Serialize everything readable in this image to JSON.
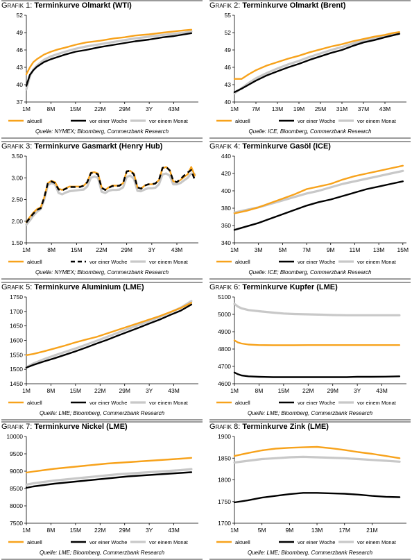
{
  "colors": {
    "aktuell": "#f7a21b",
    "vor_woche": "#000000",
    "vor_monat": "#c8c8c8"
  },
  "chart_data": [
    {
      "type": "line",
      "prefix": "Grafik 1:",
      "title": "Terminkurve Olmarkt (WTI)",
      "source": "Quelle: NYMEX; Bloomberg, Commerzbank Research",
      "ylim": [
        37,
        52
      ],
      "yticks": [
        "37",
        "40",
        "43",
        "46",
        "49",
        "52"
      ],
      "x": [
        1,
        2,
        3,
        4,
        6,
        8,
        10,
        12,
        15,
        18,
        22,
        26,
        29,
        32,
        36,
        40,
        43,
        46,
        48
      ],
      "xlim": [
        1,
        50
      ],
      "xtick_values": [
        1,
        8,
        15,
        22,
        29,
        36,
        43
      ],
      "xtick_labels": [
        "1M",
        "8M",
        "15M",
        "22M",
        "29M",
        "3Y",
        "43M"
      ],
      "series": [
        {
          "name": "aktuell",
          "values": [
            41.8,
            43.0,
            43.9,
            44.4,
            45.2,
            45.7,
            46.1,
            46.4,
            46.9,
            47.3,
            47.6,
            48.0,
            48.2,
            48.5,
            48.7,
            49.0,
            49.2,
            49.4,
            49.5
          ]
        },
        {
          "name": "vor einer Woche",
          "values": [
            39.8,
            41.7,
            42.5,
            43.1,
            43.9,
            44.4,
            44.8,
            45.2,
            45.7,
            46.0,
            46.5,
            46.9,
            47.2,
            47.5,
            47.8,
            48.2,
            48.4,
            48.7,
            48.9
          ]
        },
        {
          "name": "vor einem Monat",
          "values": [
            39.2,
            41.5,
            42.6,
            43.3,
            44.3,
            44.9,
            45.3,
            45.7,
            46.2,
            46.6,
            47.0,
            47.4,
            47.7,
            48.0,
            48.3,
            48.6,
            48.8,
            49.0,
            49.2
          ]
        }
      ]
    },
    {
      "type": "line",
      "prefix": "Grafik 2:",
      "title": "Terminkurve Olmarkt (Brent)",
      "source": "Quelle: ICE, Bloomberg, Commerzbank Research",
      "ylim": [
        40,
        55
      ],
      "yticks": [
        "40",
        "43",
        "46",
        "49",
        "52",
        "55"
      ],
      "x": [
        1,
        3,
        5,
        7,
        10,
        13,
        16,
        19,
        22,
        25,
        28,
        31,
        34,
        37,
        40,
        43,
        45,
        47
      ],
      "xlim": [
        1,
        49
      ],
      "xtick_values": [
        1,
        7,
        13,
        19,
        25,
        31,
        37,
        43
      ],
      "xtick_labels": [
        "1M",
        "7M",
        "13M",
        "19M",
        "25M",
        "31M",
        "37M",
        "43M"
      ],
      "series": [
        {
          "name": "aktuell",
          "values": [
            44.0,
            44.0,
            44.8,
            45.5,
            46.3,
            46.9,
            47.5,
            48.0,
            48.6,
            49.1,
            49.6,
            50.0,
            50.5,
            50.9,
            51.3,
            51.6,
            51.9,
            52.1
          ]
        },
        {
          "name": "vor einer Woche",
          "values": [
            41.7,
            42.3,
            43.0,
            43.7,
            44.6,
            45.3,
            46.0,
            46.6,
            47.3,
            47.9,
            48.5,
            49.0,
            49.7,
            50.3,
            50.7,
            51.2,
            51.5,
            51.8
          ]
        },
        {
          "name": "vor einem Monat",
          "values": [
            41.5,
            42.4,
            43.3,
            44.1,
            45.0,
            45.8,
            46.5,
            47.1,
            47.8,
            48.4,
            49.0,
            49.5,
            50.1,
            50.6,
            51.0,
            51.4,
            51.6,
            51.8
          ]
        }
      ]
    },
    {
      "type": "line",
      "prefix": "Grafik 3:",
      "title": "Terminkurve Gasmarkt (Henry Hub)",
      "source": "Quelle: NYMEX; Bloomberg, Commerzbank Research",
      "ylim": [
        1.5,
        3.5
      ],
      "yticks": [
        "1.50",
        "2.00",
        "2.50",
        "3.00",
        "3.50"
      ],
      "x": [
        1,
        2,
        3,
        4,
        5,
        6,
        7,
        8,
        9,
        10,
        11,
        12,
        13,
        14,
        15,
        16,
        17,
        18,
        19,
        20,
        21,
        22,
        23,
        24,
        25,
        26,
        27,
        28,
        29,
        30,
        31,
        32,
        33,
        34,
        35,
        36,
        37,
        38,
        39,
        40,
        41,
        42,
        43,
        44,
        45,
        46,
        47,
        48
      ],
      "xlim": [
        1,
        49
      ],
      "xtick_values": [
        1,
        8,
        15,
        22,
        29,
        36,
        43
      ],
      "xtick_labels": [
        "1M",
        "8M",
        "15M",
        "22M",
        "29M",
        "3Y",
        "43M"
      ],
      "series": [
        {
          "name": "aktuell",
          "values": [
            1.98,
            2.1,
            2.2,
            2.28,
            2.32,
            2.55,
            2.88,
            2.93,
            2.9,
            2.75,
            2.72,
            2.76,
            2.8,
            2.8,
            2.8,
            2.8,
            2.82,
            2.9,
            3.12,
            3.13,
            3.1,
            2.78,
            2.72,
            2.78,
            2.82,
            2.82,
            2.82,
            2.88,
            3.15,
            3.16,
            3.1,
            2.78,
            2.75,
            2.82,
            2.85,
            2.85,
            2.87,
            2.95,
            3.22,
            3.25,
            3.18,
            2.92,
            2.9,
            2.95,
            3.02,
            3.08,
            3.25,
            3.05
          ]
        },
        {
          "name": "vor einer Woche",
          "values": [
            1.97,
            2.08,
            2.18,
            2.26,
            2.3,
            2.55,
            2.88,
            2.92,
            2.88,
            2.73,
            2.71,
            2.75,
            2.79,
            2.79,
            2.79,
            2.79,
            2.82,
            2.9,
            3.11,
            3.12,
            3.08,
            2.77,
            2.72,
            2.77,
            2.81,
            2.81,
            2.82,
            2.88,
            3.15,
            3.16,
            3.08,
            2.78,
            2.75,
            2.82,
            2.85,
            2.85,
            2.87,
            2.95,
            3.23,
            3.25,
            3.17,
            2.93,
            2.9,
            2.97,
            3.05,
            3.12,
            3.18,
            2.95
          ]
        },
        {
          "name": "vor einem Monat",
          "values": [
            1.92,
            2.02,
            2.13,
            2.22,
            2.28,
            2.5,
            2.83,
            2.88,
            2.85,
            2.65,
            2.62,
            2.66,
            2.69,
            2.7,
            2.71,
            2.72,
            2.73,
            2.8,
            3.0,
            3.03,
            3.0,
            2.68,
            2.65,
            2.7,
            2.72,
            2.72,
            2.73,
            2.78,
            3.02,
            3.05,
            2.98,
            2.7,
            2.69,
            2.73,
            2.76,
            2.76,
            2.77,
            2.85,
            3.08,
            3.1,
            3.05,
            2.85,
            2.85,
            2.88,
            2.94,
            3.0,
            3.1,
            3.08
          ]
        }
      ]
    },
    {
      "type": "line",
      "prefix": "Grafik 4:",
      "title": "Terminkurve Gasöl (ICE)",
      "source": "Quelle: ICE; Bloomberg, Commerzbank Research",
      "ylim": [
        340,
        440
      ],
      "yticks": [
        "340",
        "360",
        "380",
        "400",
        "420",
        "440"
      ],
      "x": [
        1,
        2,
        3,
        4,
        5,
        6,
        7,
        8,
        9,
        10,
        11,
        12,
        13,
        14,
        15
      ],
      "xlim": [
        1,
        15.3
      ],
      "xtick_values": [
        1,
        3,
        5,
        7,
        9,
        11,
        13,
        15
      ],
      "xtick_labels": [
        "1M",
        "3M",
        "5M",
        "7M",
        "9M",
        "11M",
        "13M",
        "15M"
      ],
      "series": [
        {
          "name": "aktuell",
          "values": [
            374,
            377,
            381,
            386,
            391,
            396,
            402,
            405,
            408,
            413,
            417,
            420,
            423,
            426,
            429
          ]
        },
        {
          "name": "vor einer Woche",
          "values": [
            355,
            359,
            363,
            368,
            373,
            378,
            383,
            387,
            390,
            394,
            398,
            402,
            405,
            408,
            411
          ]
        },
        {
          "name": "vor einem Monat",
          "values": [
            375,
            378,
            381,
            385,
            389,
            393,
            397,
            400,
            404,
            408,
            411,
            414,
            417,
            420,
            423
          ]
        }
      ]
    },
    {
      "type": "line",
      "prefix": "Grafik 5:",
      "title": "Terminkurve Aluminium (LME)",
      "source": "Quelle: LME; Bloomberg, Commerzbank Research",
      "ylim": [
        1450,
        1750
      ],
      "yticks": [
        "1450",
        "1500",
        "1550",
        "1600",
        "1650",
        "1700",
        "1750"
      ],
      "x": [
        1,
        3,
        6,
        9,
        12,
        15,
        18,
        21,
        24,
        27,
        30,
        33,
        36,
        39,
        42,
        45,
        48
      ],
      "xlim": [
        1,
        50
      ],
      "xtick_values": [
        1,
        8,
        15,
        22,
        29,
        36,
        43
      ],
      "xtick_labels": [
        "1M",
        "8M",
        "15M",
        "22M",
        "29M",
        "3Y",
        "43M"
      ],
      "series": [
        {
          "name": "aktuell",
          "values": [
            1549,
            1553,
            1562,
            1572,
            1582,
            1593,
            1603,
            1612,
            1624,
            1636,
            1648,
            1660,
            1672,
            1684,
            1698,
            1712,
            1730
          ]
        },
        {
          "name": "vor einer Woche",
          "values": [
            1506,
            1515,
            1527,
            1538,
            1550,
            1562,
            1575,
            1589,
            1602,
            1616,
            1630,
            1644,
            1658,
            1672,
            1688,
            1703,
            1724
          ]
        },
        {
          "name": "vor einem Monat",
          "values": [
            1507,
            1520,
            1535,
            1548,
            1560,
            1572,
            1585,
            1598,
            1612,
            1626,
            1640,
            1653,
            1667,
            1681,
            1697,
            1713,
            1736
          ]
        }
      ]
    },
    {
      "type": "line",
      "prefix": "Grafik 6:",
      "title": "Terminkurve Kupfer (LME)",
      "source": "Quelle: LME; Bloomberg, Commerzbank Research",
      "ylim": [
        4600,
        5100
      ],
      "yticks": [
        "4600",
        "4700",
        "4800",
        "4900",
        "5000",
        "5100"
      ],
      "x": [
        1,
        2,
        3,
        5,
        8,
        12,
        15,
        18,
        22,
        26,
        29,
        33,
        36,
        40,
        44,
        48
      ],
      "xlim": [
        1,
        50
      ],
      "xtick_values": [
        1,
        8,
        15,
        22,
        29,
        36,
        43
      ],
      "xtick_labels": [
        "1M",
        "8M",
        "15M",
        "22M",
        "29M",
        "3Y",
        "43M"
      ],
      "series": [
        {
          "name": "aktuell",
          "values": [
            4850,
            4838,
            4832,
            4826,
            4823,
            4822,
            4822,
            4822,
            4823,
            4823,
            4823,
            4823,
            4823,
            4823,
            4823,
            4823
          ]
        },
        {
          "name": "vor einer Woche",
          "values": [
            4665,
            4655,
            4648,
            4643,
            4640,
            4638,
            4638,
            4638,
            4638,
            4638,
            4638,
            4638,
            4640,
            4640,
            4641,
            4643
          ]
        },
        {
          "name": "vor einem Monat",
          "values": [
            5060,
            5045,
            5035,
            5025,
            5018,
            5010,
            5005,
            5002,
            5000,
            4998,
            4996,
            4995,
            4995,
            4995,
            4995,
            4995
          ]
        }
      ]
    },
    {
      "type": "line",
      "prefix": "Grafik 7:",
      "title": "Terminkurve Nickel (LME)",
      "source": "Quelle: LME; Bloomberg, Commerzbank Research",
      "ylim": [
        7500,
        10000
      ],
      "yticks": [
        "7500",
        "8000",
        "8500",
        "9000",
        "9500",
        "10000"
      ],
      "x": [
        1,
        3,
        6,
        9,
        12,
        15,
        18,
        21,
        24,
        27,
        30,
        33,
        36,
        39,
        42,
        45,
        48
      ],
      "xlim": [
        1,
        50
      ],
      "xtick_values": [
        1,
        8,
        15,
        22,
        29,
        36,
        43
      ],
      "xtick_labels": [
        "1M",
        "8M",
        "15M",
        "22M",
        "29M",
        "3Y",
        "43M"
      ],
      "series": [
        {
          "name": "aktuell",
          "values": [
            8960,
            8990,
            9030,
            9070,
            9100,
            9130,
            9160,
            9190,
            9220,
            9240,
            9260,
            9280,
            9300,
            9320,
            9340,
            9360,
            9385
          ]
        },
        {
          "name": "vor einer Woche",
          "values": [
            8520,
            8560,
            8600,
            8640,
            8670,
            8700,
            8730,
            8760,
            8790,
            8820,
            8850,
            8870,
            8890,
            8910,
            8930,
            8950,
            8970
          ]
        },
        {
          "name": "vor einem Monat",
          "values": [
            8610,
            8650,
            8690,
            8730,
            8760,
            8790,
            8820,
            8850,
            8880,
            8910,
            8930,
            8950,
            8970,
            8990,
            9010,
            9030,
            9060
          ]
        }
      ]
    },
    {
      "type": "line",
      "prefix": "Grafik 8:",
      "title": "Terminkurve Zink (LME)",
      "source": "Quelle: LME; Bloomberg, Commerzbank Research",
      "ylim": [
        1700,
        1900
      ],
      "yticks": [
        "1700",
        "1750",
        "1800",
        "1850",
        "1900"
      ],
      "x": [
        1,
        3,
        5,
        7,
        9,
        11,
        13,
        15,
        17,
        19,
        21,
        23,
        25
      ],
      "xlim": [
        1,
        26
      ],
      "xtick_values": [
        1,
        5,
        9,
        13,
        17,
        21
      ],
      "xtick_labels": [
        "1M",
        "5M",
        "9M",
        "13M",
        "17M",
        "21M"
      ],
      "series": [
        {
          "name": "aktuell",
          "values": [
            1855,
            1862,
            1868,
            1872,
            1874,
            1875,
            1876,
            1873,
            1869,
            1864,
            1860,
            1855,
            1850
          ]
        },
        {
          "name": "vor einer Woche",
          "values": [
            1748,
            1753,
            1759,
            1763,
            1767,
            1770,
            1770,
            1769,
            1768,
            1766,
            1763,
            1761,
            1760
          ]
        },
        {
          "name": "vor einem Monat",
          "values": [
            1840,
            1844,
            1848,
            1850,
            1852,
            1853,
            1852,
            1851,
            1850,
            1848,
            1846,
            1844,
            1842
          ]
        }
      ]
    }
  ],
  "legend": {
    "aktuell": "aktuell",
    "vor_woche": "vor einer Woche",
    "vor_monat": "vor einem Monat"
  }
}
